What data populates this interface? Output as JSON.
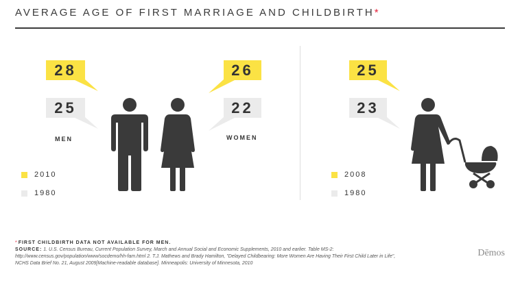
{
  "title": "AVERAGE AGE OF FIRST MARRIAGE AND CHILDBIRTH",
  "title_marker": "*",
  "colors": {
    "highlight": "#fbe244",
    "baseline": "#ebebeb",
    "figure": "#3a3a3a",
    "accent": "#e5233b"
  },
  "marriage": {
    "men_label": "MEN",
    "women_label": "WOMEN",
    "men_2010": "28",
    "men_1980": "25",
    "women_2010": "26",
    "women_1980": "22",
    "legend": [
      {
        "label": "2010",
        "color": "#fbe244"
      },
      {
        "label": "1980",
        "color": "#ebebeb"
      }
    ]
  },
  "childbirth": {
    "women_2008": "25",
    "women_1980": "23",
    "legend": [
      {
        "label": "2008",
        "color": "#fbe244"
      },
      {
        "label": "1980",
        "color": "#ebebeb"
      }
    ]
  },
  "chart_data": [
    {
      "type": "table",
      "categories": [
        "MEN",
        "WOMEN"
      ],
      "series": [
        {
          "name": "2010",
          "values": [
            28,
            26
          ]
        },
        {
          "name": "1980",
          "values": [
            25,
            22
          ]
        }
      ]
    },
    {
      "type": "table",
      "categories": [
        "WOMEN"
      ],
      "series": [
        {
          "name": "2008",
          "values": [
            25
          ]
        },
        {
          "name": "1980",
          "values": [
            23
          ]
        }
      ]
    }
  ],
  "footnote": {
    "marker": "*",
    "note": "FIRST CHILDBIRTH DATA NOT AVAILABLE FOR MEN.",
    "source_label": "SOURCE:",
    "source_text": "1. U.S. Census Bureau, Current Population Survey, March and Annual Social and Economic Supplements, 2010 and earlier. Table MS-2: http://www.census.gov/population/www/socdemo/hh-fam.html 2. T.J. Mathews and Brady Hamilton, \"Delayed Childbearing: More Women Are Having Their First Child Later in Life\", NCHS Data Brief No. 21, August 2009[Machine-readable database]. Minneapolis: University of Minnesota, 2010"
  },
  "brand": "Dēmos"
}
